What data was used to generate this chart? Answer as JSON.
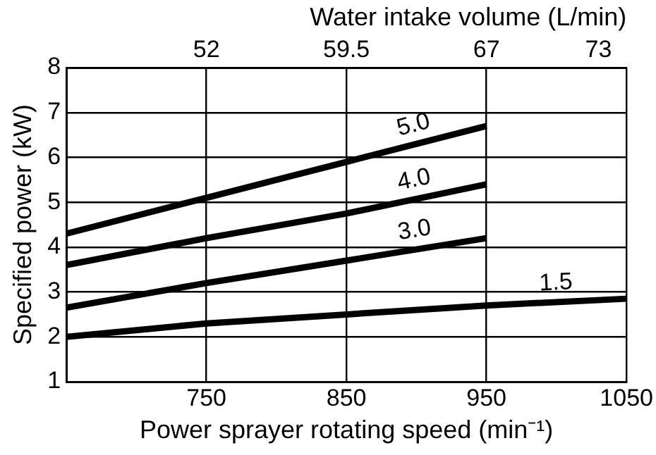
{
  "chart_data": {
    "type": "line",
    "xlabel": "Power sprayer rotating speed (min⁻¹)",
    "ylabel": "Specified power (kW)",
    "x2label": "Water intake volume (L/min)",
    "xlim": [
      650,
      1050
    ],
    "xticks": [
      750,
      850,
      950,
      1050
    ],
    "x2lim": [
      44.5,
      74.5
    ],
    "x2ticks": [
      52,
      59.5,
      67,
      73
    ],
    "ylim": [
      1,
      8
    ],
    "yticks": [
      1,
      2,
      3,
      4,
      5,
      6,
      7,
      8
    ],
    "grid": true,
    "legend": false,
    "marker": "none",
    "line_style": "solid",
    "series": [
      {
        "name": "5.0",
        "color": "#000000",
        "x": [
          650,
          750,
          850,
          950
        ],
        "values": [
          4.3,
          5.1,
          5.9,
          6.7
        ]
      },
      {
        "name": "4.0",
        "color": "#000000",
        "x": [
          650,
          750,
          850,
          950
        ],
        "values": [
          3.6,
          4.2,
          4.75,
          5.4
        ]
      },
      {
        "name": "3.0",
        "color": "#000000",
        "x": [
          650,
          750,
          850,
          950
        ],
        "values": [
          2.65,
          3.2,
          3.7,
          4.2
        ]
      },
      {
        "name": "1.5",
        "color": "#000000",
        "x": [
          650,
          750,
          850,
          950,
          1050
        ],
        "values": [
          2.0,
          2.3,
          2.5,
          2.7,
          2.85
        ]
      }
    ]
  }
}
